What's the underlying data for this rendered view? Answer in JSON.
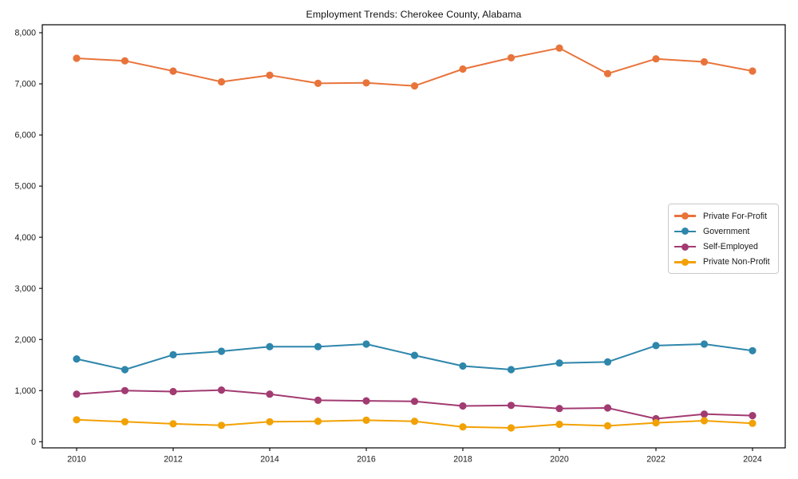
{
  "page": {
    "background": "#ffffff"
  },
  "chart_data": {
    "type": "line",
    "title": "Employment Trends: Cherokee County, Alabama",
    "x": [
      2010,
      2011,
      2012,
      2013,
      2014,
      2015,
      2016,
      2017,
      2018,
      2019,
      2020,
      2021,
      2022,
      2023,
      2024
    ],
    "series": [
      {
        "name": "Private For-Profit",
        "color": "#E8743B",
        "values": [
          7500,
          7450,
          7250,
          7040,
          7170,
          7010,
          7020,
          6960,
          7290,
          7510,
          7700,
          7200,
          7490,
          7430,
          7250
        ]
      },
      {
        "name": "Government",
        "color": "#2E86AB",
        "values": [
          1620,
          1410,
          1700,
          1770,
          1860,
          1860,
          1910,
          1690,
          1480,
          1410,
          1540,
          1560,
          1880,
          1910,
          1780
        ]
      },
      {
        "name": "Self-Employed",
        "color": "#A23B72",
        "values": [
          930,
          1000,
          980,
          1010,
          930,
          810,
          800,
          790,
          700,
          710,
          650,
          660,
          450,
          540,
          510
        ]
      },
      {
        "name": "Private Non-Profit",
        "color": "#F2A104",
        "values": [
          430,
          390,
          350,
          320,
          390,
          400,
          420,
          400,
          290,
          270,
          340,
          310,
          370,
          410,
          360
        ]
      }
    ],
    "xlabel": "",
    "ylabel": "",
    "xlim": [
      2009.3,
      2024.7
    ],
    "ylim": [
      -140,
      8160
    ],
    "yticks": [
      0,
      1000,
      2000,
      3000,
      4000,
      5000,
      6000,
      7000,
      8000
    ],
    "ytick_labels": [
      "0",
      "1,000",
      "2,000",
      "3,000",
      "4,000",
      "5,000",
      "6,000",
      "7,000",
      "8,000"
    ],
    "xticks": [
      2010,
      2012,
      2014,
      2016,
      2018,
      2020,
      2022,
      2024
    ],
    "xtick_labels": [
      "2010",
      "2012",
      "2014",
      "2016",
      "2018",
      "2020",
      "2022",
      "2024"
    ],
    "grid": false,
    "legend_position": "right-middle",
    "marker": "circle",
    "axis_color": "#000000"
  }
}
